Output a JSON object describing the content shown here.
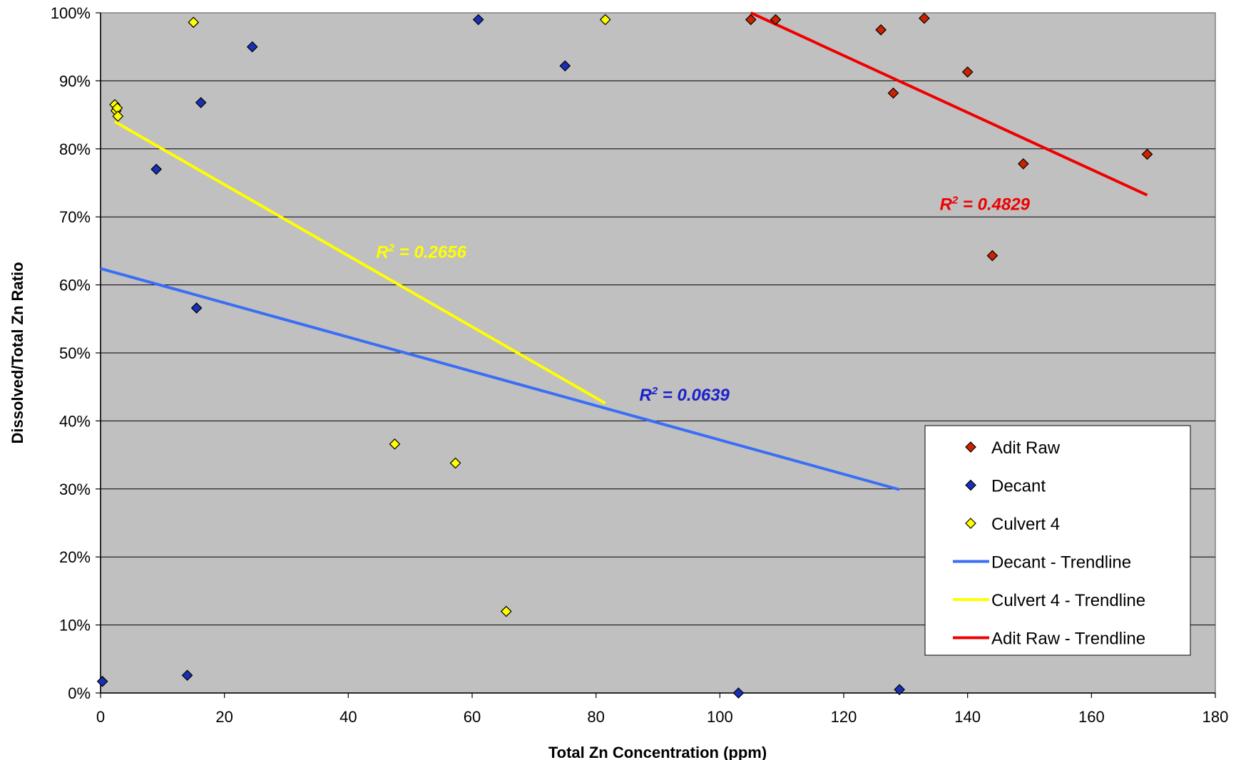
{
  "chart_data": {
    "type": "scatter",
    "xlabel": "Total Zn Concentration (ppm)",
    "ylabel": "Dissolved/Total Zn Ratio",
    "xlim": [
      0,
      180
    ],
    "ylim": [
      0,
      1
    ],
    "x_ticks": [
      "0",
      "20",
      "40",
      "60",
      "80",
      "100",
      "120",
      "140",
      "160",
      "180"
    ],
    "y_ticks": [
      "0%",
      "10%",
      "20%",
      "30%",
      "40%",
      "50%",
      "60%",
      "70%",
      "80%",
      "90%",
      "100%"
    ],
    "plot_background": "#c0c0c0",
    "grid": "horizontal",
    "legend_position": "bottom-right",
    "series": [
      {
        "name": "Adit Raw",
        "color": "#cc2200",
        "marker": "diamond",
        "points": [
          [
            105,
            0.99
          ],
          [
            109,
            0.99
          ],
          [
            126,
            0.975
          ],
          [
            128,
            0.882
          ],
          [
            133,
            0.992
          ],
          [
            140,
            0.913
          ],
          [
            144,
            0.643
          ],
          [
            149,
            0.778
          ],
          [
            169,
            0.792
          ]
        ]
      },
      {
        "name": "Decant",
        "color": "#1a2fb5",
        "marker": "diamond",
        "points": [
          [
            0.3,
            0.017
          ],
          [
            9,
            0.77
          ],
          [
            14,
            0.026
          ],
          [
            15.5,
            0.566
          ],
          [
            16.2,
            0.868
          ],
          [
            24.5,
            0.95
          ],
          [
            61,
            0.99
          ],
          [
            75,
            0.922
          ],
          [
            103,
            0.0
          ],
          [
            129,
            0.005
          ]
        ]
      },
      {
        "name": "Culvert 4",
        "color": "#ffff00",
        "marker": "diamond",
        "points": [
          [
            2.3,
            0.865
          ],
          [
            2.5,
            0.856
          ],
          [
            2.7,
            0.86
          ],
          [
            2.8,
            0.848
          ],
          [
            15,
            0.986
          ],
          [
            47.5,
            0.366
          ],
          [
            57.3,
            0.338
          ],
          [
            65.5,
            0.12
          ],
          [
            81.5,
            0.99
          ]
        ]
      }
    ],
    "trendlines": [
      {
        "name": "Decant - Trendline",
        "color": "#3a6ef5",
        "points": [
          [
            0,
            0.624
          ],
          [
            129,
            0.299
          ]
        ],
        "r2_label": "R",
        "r2_sup": "2",
        "r2_value": " = 0.0639",
        "label_color": "#1a22c8",
        "label_at": [
          87,
          0.43
        ]
      },
      {
        "name": "Culvert 4 - Trendline",
        "color": "#ffff00",
        "points": [
          [
            2.3,
            0.84
          ],
          [
            81.5,
            0.426
          ]
        ],
        "r2_label": "R",
        "r2_sup": "2",
        "r2_value": " = 0.2656",
        "label_color": "#ffff00",
        "label_at": [
          44.5,
          0.64
        ]
      },
      {
        "name": "Adit Raw - Trendline",
        "color": "#ee0000",
        "points": [
          [
            105,
            1.0
          ],
          [
            169,
            0.732
          ]
        ],
        "r2_label": "R",
        "r2_sup": "2",
        "r2_value": " = 0.4829",
        "label_color": "#ee0000",
        "label_at": [
          135.5,
          0.71
        ]
      }
    ],
    "legend": [
      {
        "label": "Adit Raw",
        "kind": "marker",
        "color": "#cc2200"
      },
      {
        "label": "Decant",
        "kind": "marker",
        "color": "#1a2fb5"
      },
      {
        "label": "Culvert 4",
        "kind": "marker",
        "color": "#ffff00"
      },
      {
        "label": "Decant - Trendline",
        "kind": "line",
        "color": "#3a6ef5"
      },
      {
        "label": "Culvert 4 - Trendline",
        "kind": "line",
        "color": "#ffff00"
      },
      {
        "label": "Adit Raw - Trendline",
        "kind": "line",
        "color": "#ee0000"
      }
    ]
  }
}
